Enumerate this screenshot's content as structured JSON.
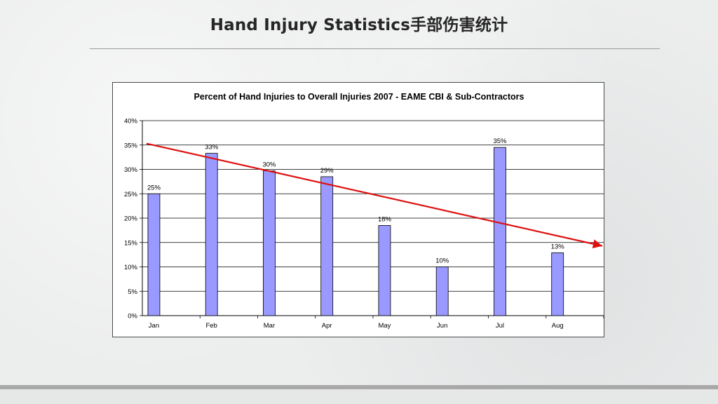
{
  "slide": {
    "title": "Hand Injury Statistics手部伤害统计"
  },
  "chart_data": {
    "type": "bar",
    "title": "Percent of Hand Injuries to Overall Injuries 2007 - EAME CBI & Sub-Contractors",
    "xlabel": "",
    "ylabel": "",
    "categories": [
      "Jan",
      "Feb",
      "Mar",
      "Apr",
      "May",
      "Jun",
      "Jul",
      "Aug"
    ],
    "values": [
      25,
      33.3,
      29.7,
      28.5,
      18.5,
      10,
      34.5,
      12.9
    ],
    "data_labels": [
      "25%",
      "33%",
      "30%",
      "29%",
      "18%",
      "10%",
      "35%",
      "13%"
    ],
    "ylim": [
      0,
      40
    ],
    "yticks": [
      0,
      5,
      10,
      15,
      20,
      25,
      30,
      35,
      40
    ],
    "ytick_labels": [
      "0%",
      "5%",
      "10%",
      "15%",
      "20%",
      "25%",
      "30%",
      "35%",
      "40%"
    ],
    "grid": true,
    "legend": "none",
    "bar_color": "#9999ff",
    "bar_edge_color": "#000000",
    "trendline": {
      "type": "linear",
      "color": "#dd1111",
      "start_value": 35.3,
      "end_value": 14.3
    }
  }
}
